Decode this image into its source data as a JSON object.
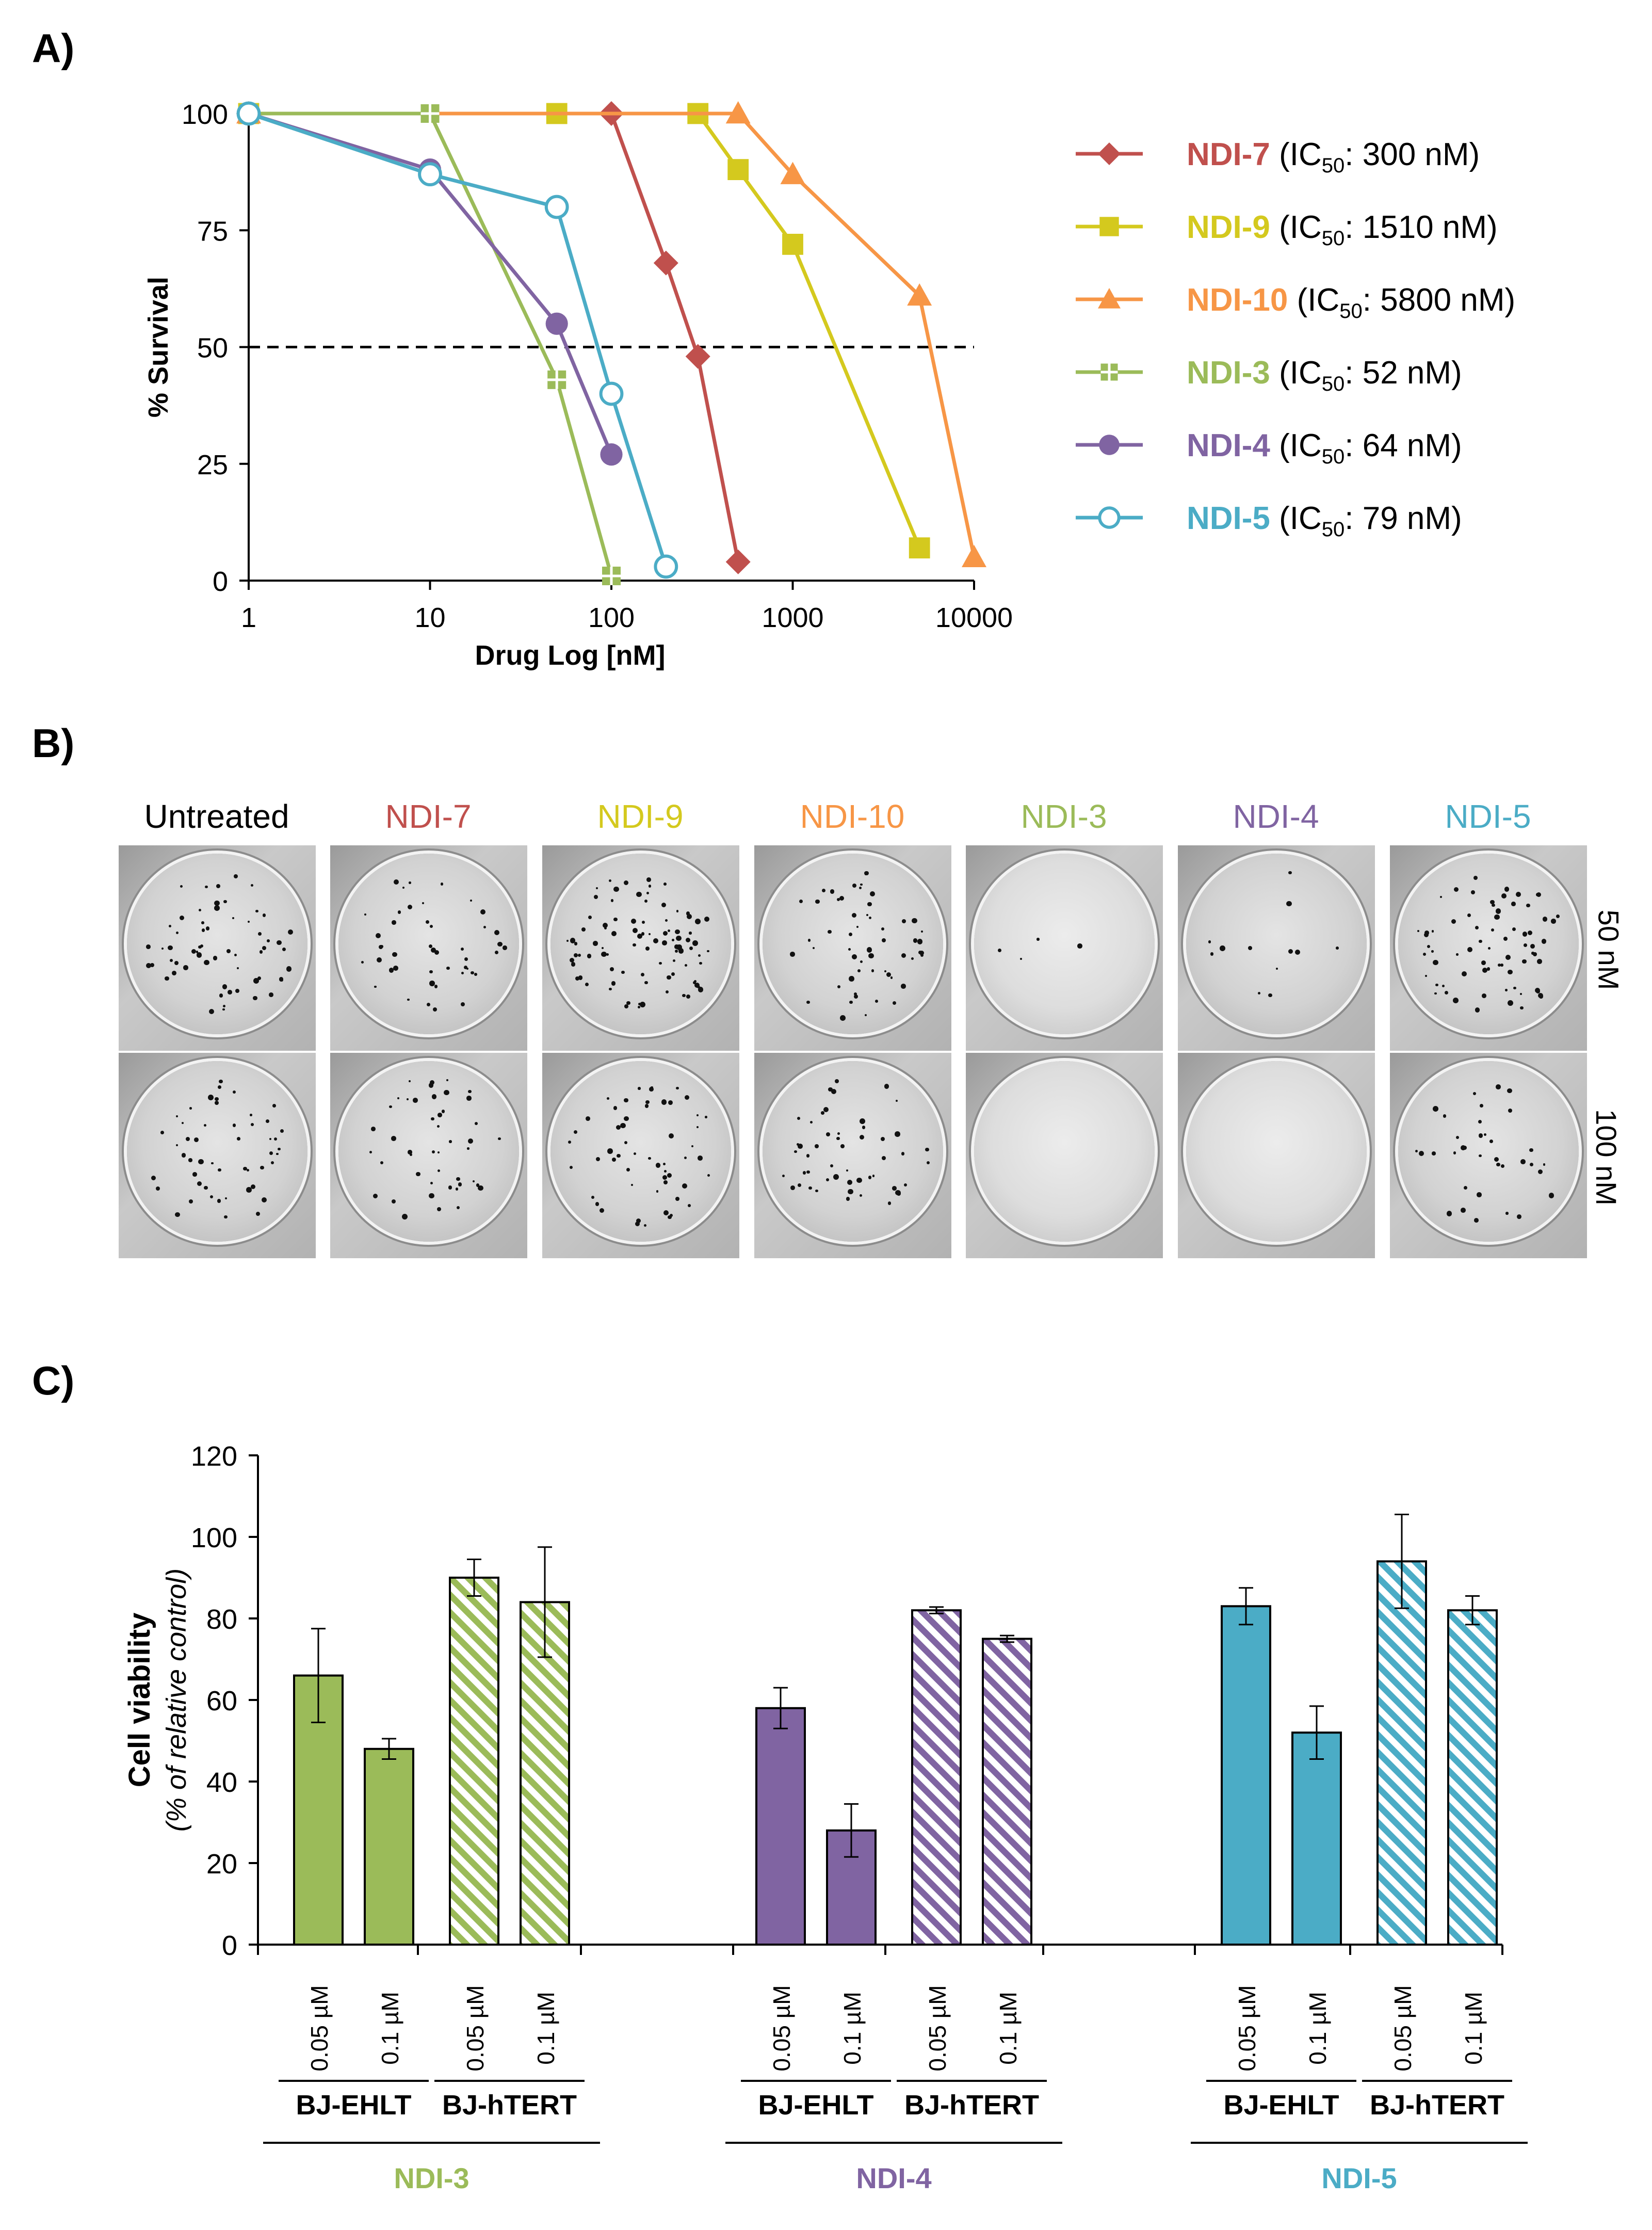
{
  "panels": {
    "a_label": "A)",
    "b_label": "B)",
    "c_label": "C)"
  },
  "colors": {
    "NDI-7": "#c0504d",
    "NDI-9": "#d4c91e",
    "NDI-10": "#f79646",
    "NDI-3": "#9bbb59",
    "NDI-4": "#8064a2",
    "NDI-5": "#4bacc6"
  },
  "chart_data": [
    {
      "type": "line",
      "title": "",
      "xlabel": "Drug Log [nM]",
      "ylabel": "% Survival",
      "xscale": "log",
      "xlim": [
        1,
        10000
      ],
      "ylim": [
        0,
        100
      ],
      "xticks": [
        "1",
        "10",
        "100",
        "1000",
        "10000"
      ],
      "yticks": [
        "0",
        "25",
        "50",
        "75",
        "100"
      ],
      "reference_line": {
        "y": 50,
        "style": "dashed"
      },
      "legend_position": "right",
      "series": [
        {
          "name": "NDI-7",
          "ic50_text": "300 nM",
          "marker": "diamond",
          "x": [
            1,
            100,
            200,
            300,
            500
          ],
          "y": [
            100,
            100,
            68,
            48,
            4
          ]
        },
        {
          "name": "NDI-9",
          "ic50_text": "1510 nM",
          "marker": "square",
          "x": [
            1,
            50,
            300,
            500,
            1000,
            5000
          ],
          "y": [
            100,
            100,
            100,
            88,
            72,
            7
          ]
        },
        {
          "name": "NDI-10",
          "ic50_text": "5800 nM",
          "marker": "triangle",
          "x": [
            1,
            500,
            1000,
            5000,
            10000
          ],
          "y": [
            100,
            100,
            87,
            61,
            5
          ]
        },
        {
          "name": "NDI-3",
          "ic50_text": "52 nM",
          "marker": "cross-square",
          "x": [
            1,
            10,
            50,
            100
          ],
          "y": [
            100,
            100,
            43,
            1
          ]
        },
        {
          "name": "NDI-4",
          "ic50_text": " 64 nM",
          "marker": "circle",
          "x": [
            1,
            10,
            50,
            100
          ],
          "y": [
            100,
            88,
            55,
            27
          ]
        },
        {
          "name": "NDI-5",
          "ic50_text": "79 nM",
          "marker": "open-circle",
          "x": [
            1,
            10,
            50,
            100,
            200
          ],
          "y": [
            100,
            87,
            80,
            40,
            3
          ]
        }
      ]
    },
    {
      "type": "bar",
      "title": "",
      "ylabel": "Cell viability",
      "ylabel_sub": "(% of relative control)",
      "ylim": [
        0,
        120
      ],
      "yticks": [
        "0",
        "20",
        "40",
        "60",
        "80",
        "100",
        "120"
      ],
      "tick_labels": [
        "0.05 µM",
        "0.1 µM",
        "0.05 µM",
        "0.1 µM"
      ],
      "cell_lines": [
        "BJ-EHLT",
        "BJ-hTERT"
      ],
      "groups": [
        {
          "name": "NDI-3",
          "values": [
            66,
            48,
            90,
            84
          ],
          "errors": [
            11.5,
            2.5,
            4.5,
            13.5
          ]
        },
        {
          "name": "NDI-4",
          "values": [
            58,
            28,
            82,
            75
          ],
          "errors": [
            5,
            6.5,
            0.8,
            0.8
          ]
        },
        {
          "name": "NDI-5",
          "values": [
            83,
            52,
            94,
            82
          ],
          "errors": [
            4.5,
            6.5,
            11.5,
            3.5
          ]
        }
      ]
    }
  ],
  "plates": {
    "columns": [
      "Untreated",
      "NDI-7",
      "NDI-9",
      "NDI-10",
      "NDI-3",
      "NDI-4",
      "NDI-5"
    ],
    "rows": [
      "50 nM",
      "100 nM"
    ],
    "density": [
      [
        60,
        45,
        90,
        55,
        4,
        12,
        70
      ],
      [
        50,
        45,
        55,
        50,
        0,
        0,
        35
      ]
    ]
  }
}
